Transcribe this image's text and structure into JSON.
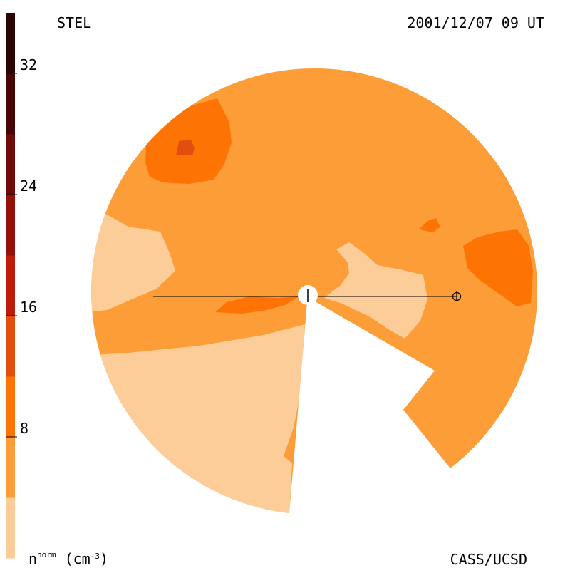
{
  "header": {
    "observatory": "STEL",
    "timestamp": "2001/12/07 09 UT"
  },
  "footer": {
    "credit": "CASS/UCSD",
    "quantity_symbol": "n",
    "quantity_superscript": "norm",
    "unit_prefix": "(cm",
    "unit_exponent": "-3",
    "unit_suffix": ")"
  },
  "colorbar": {
    "min": 0,
    "max": 36,
    "step": 4,
    "tick_labels": [
      "8",
      "16",
      "24",
      "32"
    ],
    "tick_values": [
      8,
      16,
      24,
      32
    ],
    "bands": [
      {
        "from": 0,
        "to": 4,
        "color": "#fdcd99"
      },
      {
        "from": 4,
        "to": 8,
        "color": "#fc9d37"
      },
      {
        "from": 8,
        "to": 12,
        "color": "#fd7405"
      },
      {
        "from": 12,
        "to": 16,
        "color": "#e24e0d"
      },
      {
        "from": 16,
        "to": 20,
        "color": "#be1c0b"
      },
      {
        "from": 20,
        "to": 24,
        "color": "#951009"
      },
      {
        "from": 24,
        "to": 28,
        "color": "#6e0a08"
      },
      {
        "from": 28,
        "to": 32,
        "color": "#480506"
      },
      {
        "from": 32,
        "to": 36,
        "color": "#2a0504"
      }
    ]
  },
  "map": {
    "background_level_color": "#fc9d37",
    "low_level_color": "#fdcd99",
    "mid_level_color": "#fd7405",
    "high_level_color": "#e24e0d",
    "sun_icon": "sun-circle-icon",
    "earth_icon": "earth-symbol-icon"
  }
}
